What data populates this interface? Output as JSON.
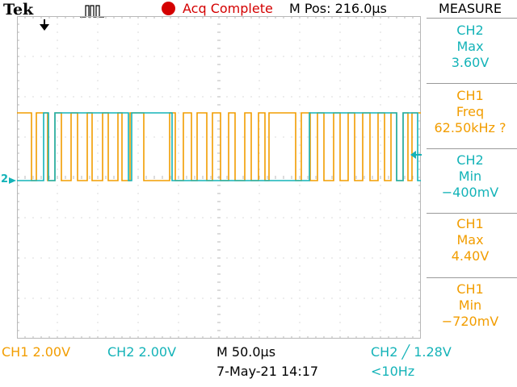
{
  "header": {
    "brand": "Tek",
    "acq_status": "Acq Complete",
    "m_pos": "M Pos: 216.0µs",
    "measure_title": "MEASURE"
  },
  "colors": {
    "ch1": "#f29d00",
    "ch2": "#14b3b8",
    "acq_status": "#d40000",
    "grid": "#b8b8b8"
  },
  "icons": {
    "trigger_position": "arrow-down-marker",
    "trigger_type": "pulse-edge-icon",
    "acq_status": "red-dot",
    "trigger_level": "left-arrow-marker"
  },
  "measurements": [
    {
      "channel": "CH2",
      "name": "Max",
      "value": "3.60V"
    },
    {
      "channel": "CH1",
      "name": "Freq",
      "value": "62.50kHz ?"
    },
    {
      "channel": "CH2",
      "name": "Min",
      "value": "−400mV"
    },
    {
      "channel": "CH1",
      "name": "Max",
      "value": "4.40V"
    },
    {
      "channel": "CH1",
      "name": "Min",
      "value": "−720mV"
    }
  ],
  "footer": {
    "ch1_scale": "CH1  2.00V",
    "ch2_scale": "CH2  2.00V",
    "timebase": "M 50.0µs",
    "date_time": "7-May-21 14:17",
    "trigger": "CH2 ╱ 1.28V",
    "trigger_freq": "<10Hz"
  },
  "channel_markers": {
    "ch2_ground": "2"
  }
}
